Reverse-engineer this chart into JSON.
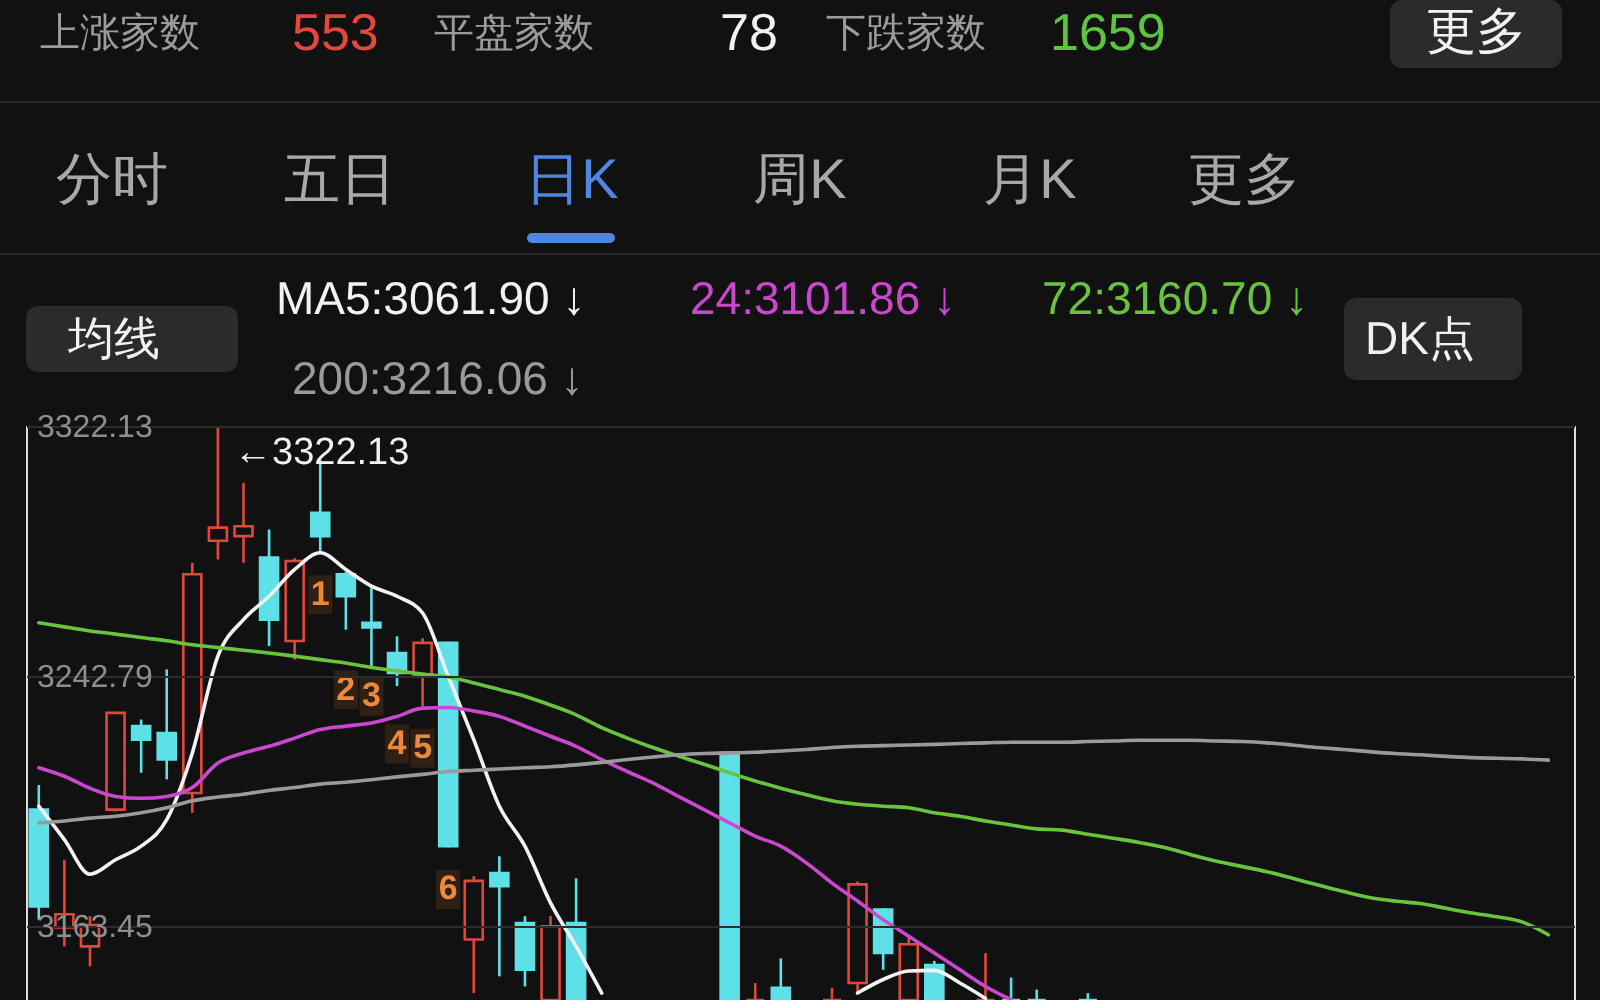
{
  "chart_data": {
    "type": "candlestick",
    "categories": [
      null,
      null,
      null,
      null,
      null,
      null,
      null,
      null,
      null,
      null,
      null,
      null,
      null,
      null,
      null,
      null,
      null,
      null,
      null,
      null,
      null,
      null,
      null,
      null,
      null,
      null,
      null,
      null,
      null,
      null,
      null,
      null,
      null,
      null,
      null,
      null,
      null,
      null,
      null,
      null,
      null,
      null,
      null,
      null,
      null,
      null,
      null,
      null,
      null,
      null,
      null,
      null,
      null,
      null,
      null,
      null,
      null,
      null,
      null,
      null
    ],
    "ohlc": [
      [
        3200.4,
        3208.2,
        3165.5,
        3169.7
      ],
      [
        3163.0,
        3184.5,
        3157.0,
        3167.2
      ],
      [
        3157.0,
        3166.6,
        3150.7,
        3163.8
      ],
      [
        3200.4,
        3231.5,
        3199.8,
        3231.1
      ],
      [
        3226.9,
        3229.0,
        3212.1,
        3222.6
      ],
      [
        3224.7,
        3244.9,
        3210.0,
        3216.3
      ],
      [
        3205.7,
        3278.7,
        3199.4,
        3275.1
      ],
      [
        3285.7,
        3322.13,
        3279.8,
        3289.9
      ],
      [
        3287.2,
        3304.1,
        3278.7,
        3290.3
      ],
      [
        3280.4,
        3289.3,
        3252.3,
        3260.7
      ],
      [
        3253.9,
        3280.2,
        3248.0,
        3279.3
      ],
      [
        3294.6,
        3311.5,
        3281.9,
        3287.2
      ],
      [
        3275.1,
        3275.9,
        3257.5,
        3268.1
      ],
      [
        3259.7,
        3271.3,
        3245.9,
        3258.2
      ],
      [
        3250.1,
        3255.4,
        3239.6,
        3243.8
      ],
      [
        3242.7,
        3254.8,
        3233.2,
        3253.3
      ],
      [
        3253.3,
        3253.7,
        3188.4,
        3188.8
      ],
      [
        3159.2,
        3179.3,
        3142.2,
        3177.8
      ],
      [
        3180.3,
        3185.6,
        3147.5,
        3176.1
      ],
      [
        3164.4,
        3166.6,
        3144.3,
        3149.6
      ],
      [
        3140,
        3166.6,
        3140,
        3163.4
      ],
      [
        3164.4,
        3178.6,
        3140,
        3140
      ],
      null,
      null,
      null,
      null,
      null,
      [
        3218.4,
        3218.4,
        3140,
        3140
      ],
      [
        3140,
        3145.4,
        3140,
        3140
      ],
      [
        3143.9,
        3153.2,
        3140,
        3140
      ],
      null,
      [
        3140,
        3143.9,
        3140,
        3140
      ],
      [
        3145.4,
        3177.6,
        3142.2,
        3176.7
      ],
      [
        3168.7,
        3169.1,
        3149.6,
        3154.9
      ],
      [
        3140,
        3160.2,
        3140,
        3157.7
      ],
      [
        3151.1,
        3152.4,
        3140,
        3140
      ],
      null,
      [
        3140,
        3154.9,
        3140,
        3140
      ],
      [
        3140,
        3147.1,
        3140,
        3140
      ],
      [
        3140,
        3143.3,
        3140,
        3140
      ],
      null,
      [
        3140,
        3142.2,
        3140,
        3140
      ],
      null,
      null,
      null,
      null,
      null,
      null,
      null,
      null,
      null,
      null,
      null,
      null,
      null,
      null,
      null,
      null,
      null,
      null
    ],
    "colors": [
      "#5ee0e8",
      "#e0483b",
      "#e0483b",
      "#e0483b",
      "#5ee0e8",
      "#5ee0e8",
      "#e0483b",
      "#e0483b",
      "#e0483b",
      "#5ee0e8",
      "#e0483b",
      "#5ee0e8",
      "#5ee0e8",
      "#5ee0e8",
      "#5ee0e8",
      "#e0483b",
      "#5ee0e8",
      "#e0483b",
      "#5ee0e8",
      "#5ee0e8",
      "#e0483b",
      "#5ee0e8",
      null,
      null,
      null,
      null,
      null,
      "#5ee0e8",
      "#e0483b",
      "#5ee0e8",
      null,
      "#e0483b",
      "#e0483b",
      "#5ee0e8",
      "#e0483b",
      "#5ee0e8",
      null,
      "#e0483b",
      "#5ee0e8",
      "#5ee0e8",
      null,
      "#5ee0e8",
      null,
      null,
      null,
      null,
      null,
      null,
      null,
      null,
      null,
      null,
      null,
      null,
      null,
      null,
      null,
      null,
      null,
      null
    ],
    "value_labels": [
      null,
      null,
      null,
      null,
      null,
      null,
      null,
      null,
      null,
      null,
      null,
      "1",
      "2",
      "3",
      "4",
      "5",
      "6",
      null,
      null,
      null,
      null,
      null,
      null,
      null,
      null,
      null,
      null,
      null,
      null,
      null,
      null,
      null,
      null,
      null,
      null,
      null,
      null,
      null,
      null,
      null,
      null,
      null,
      null,
      null,
      null,
      null,
      null,
      null,
      null,
      null,
      null,
      null,
      null,
      null,
      null,
      null,
      null,
      null,
      null,
      null
    ],
    "series": [
      {
        "name": "MA5:3061.90 ↓",
        "color": "#f2f2f2",
        "type": "line",
        "values": [
          3201.5,
          3190.9,
          3179.9,
          3184.5,
          3188.8,
          3197.2,
          3218.4,
          3249.1,
          3260.7,
          3268.1,
          3276.6,
          3281.9,
          3276.6,
          3271.3,
          3268.1,
          3262.8,
          3242.7,
          3222.6,
          3201.5,
          3188.8,
          3170.8,
          3157.0,
          3142.2,
          null,
          null,
          null,
          null,
          null,
          null,
          null,
          null,
          null,
          3142.2,
          3146.5,
          3149.2,
          3149.4,
          3145.4,
          3140.5,
          null,
          null,
          null,
          null,
          null,
          null,
          null,
          null,
          null,
          null,
          null,
          null,
          null,
          null,
          null,
          null,
          null,
          null,
          null,
          null,
          null,
          null
        ]
      },
      {
        "name": "24:3101.86 ↓",
        "color": "#cc47d0",
        "type": "line",
        "values": [
          3213.7,
          3211.0,
          3207.2,
          3204.6,
          3204.0,
          3204.6,
          3207.4,
          3215.2,
          3218.4,
          3220.5,
          3223.1,
          3225.8,
          3226.9,
          3227.9,
          3230.0,
          3232.6,
          3232.8,
          3231.7,
          3230.0,
          3226.9,
          3223.7,
          3220.5,
          3216.3,
          3212.5,
          3208.9,
          3204.6,
          3200.4,
          3196.2,
          3192.0,
          3188.8,
          3183.5,
          3177.1,
          3171.4,
          3165.5,
          3160.2,
          3154.9,
          3149.6,
          3144.3,
          3140.1,
          null,
          null,
          null,
          null,
          null,
          null,
          null,
          null,
          null,
          null,
          null,
          null,
          null,
          null,
          null,
          null,
          null,
          null,
          null,
          null,
          null
        ]
      },
      {
        "name": "72:3160.70 ↓",
        "color": "#69c43d",
        "type": "line",
        "values": [
          3259.7,
          3258.4,
          3257.1,
          3256.1,
          3255.0,
          3254.0,
          3252.7,
          3251.8,
          3251.0,
          3250.1,
          3249.1,
          3248.0,
          3246.9,
          3245.5,
          3244.4,
          3243.4,
          3242.5,
          3240.6,
          3238.5,
          3236.4,
          3233.6,
          3230.5,
          3226.4,
          3223.1,
          3220.1,
          3217.4,
          3214.8,
          3212.1,
          3209.5,
          3207.2,
          3205.1,
          3203.2,
          3202.1,
          3201.5,
          3201.0,
          3199.4,
          3198.3,
          3196.8,
          3195.5,
          3194.3,
          3193.9,
          3192.6,
          3191.3,
          3190.0,
          3188.4,
          3186.2,
          3184.1,
          3182.4,
          3180.7,
          3178.6,
          3176.5,
          3174.4,
          3172.5,
          3171.4,
          3170.6,
          3169.1,
          3167.6,
          3166.4,
          3164.7,
          3160.7
        ]
      },
      {
        "name": "200:3216.06 ↓",
        "color": "#9a9a9a",
        "type": "line",
        "values": [
          3196.2,
          3196.8,
          3197.7,
          3198.3,
          3199.4,
          3201.0,
          3203.2,
          3204.4,
          3205.3,
          3206.5,
          3207.4,
          3208.5,
          3209.1,
          3209.9,
          3210.8,
          3211.6,
          3212.5,
          3212.9,
          3213.3,
          3213.7,
          3214.0,
          3214.6,
          3215.4,
          3216.3,
          3217.1,
          3217.8,
          3218.2,
          3218.4,
          3218.6,
          3219.0,
          3219.5,
          3220.1,
          3220.5,
          3220.7,
          3220.9,
          3221.1,
          3221.4,
          3221.6,
          3221.8,
          3221.8,
          3221.8,
          3222.0,
          3222.2,
          3222.4,
          3222.4,
          3222.4,
          3222.2,
          3222.0,
          3221.6,
          3220.9,
          3220.1,
          3219.5,
          3218.8,
          3218.2,
          3217.8,
          3217.3,
          3216.9,
          3216.7,
          3216.5,
          3216.1
        ]
      }
    ],
    "ylim": [
      3140,
      3322.13
    ],
    "yticks": [
      3163.45,
      3242.79,
      3322.13
    ],
    "grid": "y",
    "tick_labels": "y",
    "legend": "top",
    "annotations": [
      "上涨家数",
      "553",
      "平盘家数",
      "78",
      "下跌家数",
      "1659",
      "更多",
      "分时",
      "五日",
      "日K",
      "周K",
      "月K",
      "更多",
      "均线",
      "DK点",
      "←3322.13"
    ]
  }
}
